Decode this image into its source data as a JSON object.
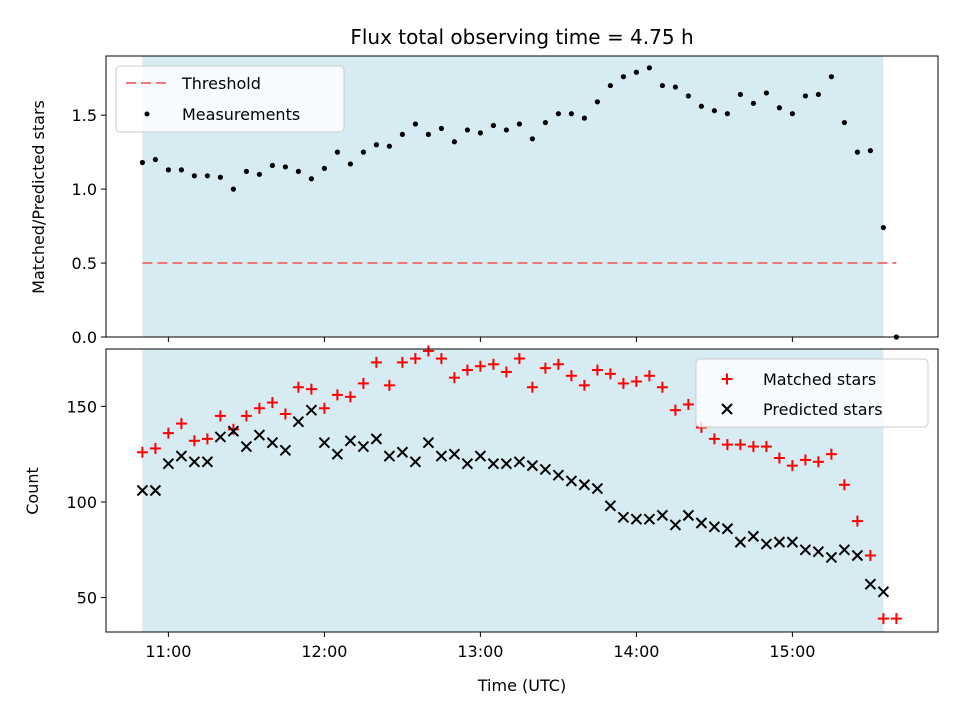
{
  "chart_data": [
    {
      "type": "scatter",
      "title": "Flux total observing time = 4.75 h",
      "xlabel": "",
      "ylabel": "Matched/Predicted stars",
      "xlim": [
        "10:36",
        "15:56"
      ],
      "ylim": [
        0,
        1.9
      ],
      "yticks": [
        0.0,
        0.5,
        1.0,
        1.5
      ],
      "ytick_labels": [
        "0.0",
        "0.5",
        "1.0",
        "1.5"
      ],
      "grid": false,
      "legend_position": "top-left",
      "observing_window": [
        "10:50",
        "15:35"
      ],
      "threshold": {
        "name": "Threshold",
        "value": 0.5,
        "x_range": [
          "10:50",
          "15:40"
        ],
        "color": "#f07878",
        "style": "dashed"
      },
      "series": [
        {
          "name": "Measurements",
          "color": "#000000",
          "marker": "dot",
          "x": [
            "10:50",
            "10:55",
            "11:00",
            "11:05",
            "11:10",
            "11:15",
            "11:20",
            "11:25",
            "11:30",
            "11:35",
            "11:40",
            "11:45",
            "11:50",
            "11:55",
            "12:00",
            "12:05",
            "12:10",
            "12:15",
            "12:20",
            "12:25",
            "12:30",
            "12:35",
            "12:40",
            "12:45",
            "12:50",
            "12:55",
            "13:00",
            "13:05",
            "13:10",
            "13:15",
            "13:20",
            "13:25",
            "13:30",
            "13:35",
            "13:40",
            "13:45",
            "13:50",
            "13:55",
            "14:00",
            "14:05",
            "14:10",
            "14:15",
            "14:20",
            "14:25",
            "14:30",
            "14:35",
            "14:40",
            "14:45",
            "14:50",
            "14:55",
            "15:00",
            "15:05",
            "15:10",
            "15:15",
            "15:20",
            "15:25",
            "15:30",
            "15:35",
            "15:40"
          ],
          "values": [
            1.18,
            1.2,
            1.13,
            1.13,
            1.09,
            1.09,
            1.08,
            1.0,
            1.12,
            1.1,
            1.16,
            1.15,
            1.12,
            1.07,
            1.14,
            1.25,
            1.17,
            1.25,
            1.3,
            1.29,
            1.37,
            1.44,
            1.37,
            1.41,
            1.32,
            1.4,
            1.38,
            1.43,
            1.4,
            1.44,
            1.34,
            1.45,
            1.51,
            1.51,
            1.48,
            1.59,
            1.7,
            1.76,
            1.79,
            1.82,
            1.7,
            1.69,
            1.63,
            1.56,
            1.53,
            1.51,
            1.64,
            1.58,
            1.65,
            1.55,
            1.51,
            1.63,
            1.64,
            1.76,
            1.45,
            1.25,
            1.26,
            0.74,
            0.0
          ]
        }
      ]
    },
    {
      "type": "scatter",
      "title": "",
      "xlabel": "Time (UTC)",
      "ylabel": "Count",
      "xlim": [
        "10:36",
        "15:56"
      ],
      "ylim": [
        32,
        180
      ],
      "yticks": [
        50,
        100,
        150
      ],
      "ytick_labels": [
        "50",
        "100",
        "150"
      ],
      "xticks": [
        "11:00",
        "12:00",
        "13:00",
        "14:00",
        "15:00"
      ],
      "xtick_labels": [
        "11:00",
        "12:00",
        "13:00",
        "14:00",
        "15:00"
      ],
      "grid": false,
      "legend_position": "top-right",
      "observing_window": [
        "10:50",
        "15:35"
      ],
      "series": [
        {
          "name": "Matched stars",
          "color": "#ff0000",
          "marker": "plus",
          "x": [
            "10:50",
            "10:55",
            "11:00",
            "11:05",
            "11:10",
            "11:15",
            "11:20",
            "11:25",
            "11:30",
            "11:35",
            "11:40",
            "11:45",
            "11:50",
            "11:55",
            "12:00",
            "12:05",
            "12:10",
            "12:15",
            "12:20",
            "12:25",
            "12:30",
            "12:35",
            "12:40",
            "12:45",
            "12:50",
            "12:55",
            "13:00",
            "13:05",
            "13:10",
            "13:15",
            "13:20",
            "13:25",
            "13:30",
            "13:35",
            "13:40",
            "13:45",
            "13:50",
            "13:55",
            "14:00",
            "14:05",
            "14:10",
            "14:15",
            "14:20",
            "14:25",
            "14:30",
            "14:35",
            "14:40",
            "14:45",
            "14:50",
            "14:55",
            "15:00",
            "15:05",
            "15:10",
            "15:15",
            "15:20",
            "15:25",
            "15:30",
            "15:35",
            "15:40"
          ],
          "values": [
            126,
            128,
            136,
            141,
            132,
            133,
            145,
            138,
            145,
            149,
            152,
            146,
            160,
            159,
            149,
            156,
            155,
            162,
            173,
            161,
            173,
            175,
            179,
            175,
            165,
            169,
            171,
            172,
            168,
            175,
            160,
            170,
            172,
            166,
            161,
            169,
            167,
            162,
            163,
            166,
            160,
            148,
            151,
            139,
            133,
            130,
            130,
            129,
            129,
            123,
            119,
            122,
            121,
            125,
            109,
            90,
            72,
            39,
            39
          ]
        },
        {
          "name": "Predicted stars",
          "color": "#000000",
          "marker": "x",
          "x": [
            "10:50",
            "10:55",
            "11:00",
            "11:05",
            "11:10",
            "11:15",
            "11:20",
            "11:25",
            "11:30",
            "11:35",
            "11:40",
            "11:45",
            "11:50",
            "11:55",
            "12:00",
            "12:05",
            "12:10",
            "12:15",
            "12:20",
            "12:25",
            "12:30",
            "12:35",
            "12:40",
            "12:45",
            "12:50",
            "12:55",
            "13:00",
            "13:05",
            "13:10",
            "13:15",
            "13:20",
            "13:25",
            "13:30",
            "13:35",
            "13:40",
            "13:45",
            "13:50",
            "13:55",
            "14:00",
            "14:05",
            "14:10",
            "14:15",
            "14:20",
            "14:25",
            "14:30",
            "14:35",
            "14:40",
            "14:45",
            "14:50",
            "14:55",
            "15:00",
            "15:05",
            "15:10",
            "15:15",
            "15:20",
            "15:25",
            "15:30",
            "15:35"
          ],
          "values": [
            106,
            106,
            120,
            124,
            121,
            121,
            134,
            137,
            129,
            135,
            131,
            127,
            142,
            148,
            131,
            125,
            132,
            129,
            133,
            124,
            126,
            121,
            131,
            124,
            125,
            120,
            124,
            120,
            120,
            121,
            119,
            117,
            114,
            111,
            109,
            107,
            98,
            92,
            91,
            91,
            93,
            88,
            93,
            89,
            87,
            86,
            79,
            82,
            78,
            79,
            79,
            75,
            74,
            71,
            75,
            72,
            57,
            53
          ]
        }
      ]
    }
  ]
}
